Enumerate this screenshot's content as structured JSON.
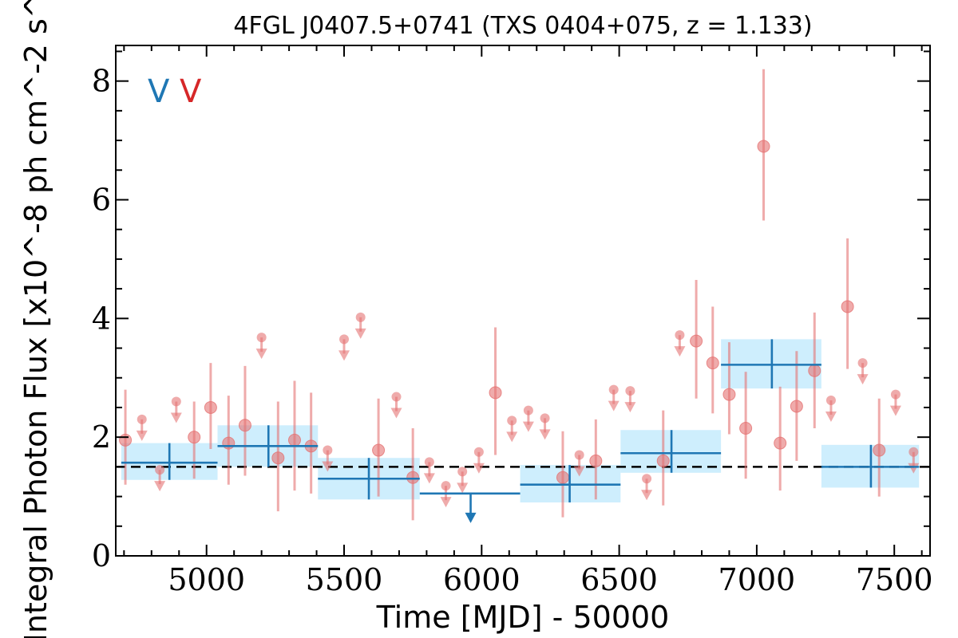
{
  "chart_data": {
    "type": "scatter",
    "title": "4FGL J0407.5+0741 (TXS 0404+075, z = 1.133)",
    "xlabel": "Time [MJD] - 50000",
    "ylabel": "Integral Photon Flux [x10^-8 ph cm^-2 s^-1]",
    "xlim": [
      4670,
      7630
    ],
    "ylim": [
      0,
      8.6
    ],
    "xticks": [
      "5000",
      "5500",
      "6000",
      "6500",
      "7000",
      "7500"
    ],
    "yticks": [
      "0",
      "2",
      "4",
      "6",
      "8"
    ],
    "grid": false,
    "annotations": [
      {
        "text": "V",
        "color": "#1f77b4"
      },
      {
        "text": "V",
        "color": "#d62728"
      }
    ],
    "reference_level": 1.5,
    "colors": {
      "fine_series": "#e57373",
      "coarse_series": "#1f77b4",
      "coarse_band": "#b3e5fc",
      "reference_line": "#000000"
    },
    "series": [
      {
        "kind": "fine_bins",
        "points": [
          {
            "x": 4705,
            "y": 1.95,
            "lo": 1.2,
            "hi": 2.8
          },
          {
            "x": 4765,
            "y": 2.3,
            "ul": true
          },
          {
            "x": 4830,
            "y": 1.45,
            "ul": true
          },
          {
            "x": 4890,
            "y": 2.6,
            "ul": true
          },
          {
            "x": 4955,
            "y": 2.0,
            "lo": 1.3,
            "hi": 2.6
          },
          {
            "x": 5015,
            "y": 2.5,
            "lo": 1.8,
            "hi": 3.25
          },
          {
            "x": 5080,
            "y": 1.9,
            "lo": 1.2,
            "hi": 2.7
          },
          {
            "x": 5140,
            "y": 2.2,
            "lo": 1.35,
            "hi": 3.2
          },
          {
            "x": 5260,
            "y": 1.65,
            "lo": 0.75,
            "hi": 2.6
          },
          {
            "x": 5200,
            "y": 3.68,
            "ul": true
          },
          {
            "x": 5320,
            "y": 1.95,
            "lo": 1.1,
            "hi": 2.95
          },
          {
            "x": 5380,
            "y": 1.85,
            "lo": 1.05,
            "hi": 2.75
          },
          {
            "x": 5440,
            "y": 1.78,
            "ul": true
          },
          {
            "x": 5500,
            "y": 3.65,
            "ul": true
          },
          {
            "x": 5560,
            "y": 4.02,
            "ul": true
          },
          {
            "x": 5625,
            "y": 1.78,
            "lo": 1.0,
            "hi": 2.65
          },
          {
            "x": 5690,
            "y": 2.68,
            "ul": true
          },
          {
            "x": 5750,
            "y": 1.32,
            "lo": 0.6,
            "hi": 2.15
          },
          {
            "x": 5810,
            "y": 1.58,
            "ul": true
          },
          {
            "x": 5870,
            "y": 1.18,
            "ul": true
          },
          {
            "x": 5930,
            "y": 1.42,
            "ul": true
          },
          {
            "x": 5990,
            "y": 1.75,
            "ul": true
          },
          {
            "x": 6050,
            "y": 2.75,
            "lo": 1.7,
            "hi": 3.85
          },
          {
            "x": 6110,
            "y": 2.28,
            "ul": true
          },
          {
            "x": 6170,
            "y": 2.45,
            "ul": true
          },
          {
            "x": 6230,
            "y": 2.32,
            "ul": true
          },
          {
            "x": 6295,
            "y": 1.32,
            "lo": 0.65,
            "hi": 2.1
          },
          {
            "x": 6355,
            "y": 1.7,
            "ul": true
          },
          {
            "x": 6415,
            "y": 1.6,
            "lo": 0.95,
            "hi": 2.3
          },
          {
            "x": 6480,
            "y": 2.8,
            "ul": true
          },
          {
            "x": 6540,
            "y": 2.78,
            "ul": true
          },
          {
            "x": 6600,
            "y": 1.3,
            "ul": true
          },
          {
            "x": 6660,
            "y": 1.6,
            "lo": 0.85,
            "hi": 2.45
          },
          {
            "x": 6720,
            "y": 3.72,
            "ul": true
          },
          {
            "x": 6780,
            "y": 3.62,
            "lo": 2.65,
            "hi": 4.65
          },
          {
            "x": 6840,
            "y": 3.25,
            "lo": 2.4,
            "hi": 4.2
          },
          {
            "x": 6900,
            "y": 2.72,
            "lo": 2.05,
            "hi": 3.6
          },
          {
            "x": 6960,
            "y": 2.15,
            "lo": 1.3,
            "hi": 3.1
          },
          {
            "x": 7025,
            "y": 6.9,
            "lo": 5.65,
            "hi": 8.2
          },
          {
            "x": 7085,
            "y": 1.9,
            "lo": 1.1,
            "hi": 2.85
          },
          {
            "x": 7145,
            "y": 2.52,
            "lo": 1.6,
            "hi": 3.45
          },
          {
            "x": 7210,
            "y": 3.12,
            "lo": 2.15,
            "hi": 4.1
          },
          {
            "x": 7270,
            "y": 2.62,
            "ul": true
          },
          {
            "x": 7330,
            "y": 4.2,
            "lo": 3.15,
            "hi": 5.35
          },
          {
            "x": 7385,
            "y": 3.25,
            "ul": true
          },
          {
            "x": 7445,
            "y": 1.78,
            "lo": 1.0,
            "hi": 2.65
          },
          {
            "x": 7505,
            "y": 2.72,
            "ul": true
          },
          {
            "x": 7570,
            "y": 1.75,
            "ul": true
          }
        ]
      },
      {
        "kind": "coarse_bins",
        "points": [
          {
            "x0": 4690,
            "x1": 5040,
            "xc": 4865,
            "y": 1.57,
            "lo": 1.28,
            "hi": 1.9
          },
          {
            "x0": 5040,
            "x1": 5405,
            "xc": 5225,
            "y": 1.85,
            "lo": 1.5,
            "hi": 2.2
          },
          {
            "x0": 5405,
            "x1": 5775,
            "xc": 5590,
            "y": 1.3,
            "lo": 0.95,
            "hi": 1.65
          },
          {
            "x0": 5775,
            "x1": 6140,
            "xc": 5960,
            "y": 1.05,
            "ul": true
          },
          {
            "x0": 6140,
            "x1": 6505,
            "xc": 6320,
            "y": 1.2,
            "lo": 0.9,
            "hi": 1.53
          },
          {
            "x0": 6505,
            "x1": 6870,
            "xc": 6690,
            "y": 1.73,
            "lo": 1.4,
            "hi": 2.12
          },
          {
            "x0": 6870,
            "x1": 7235,
            "xc": 7055,
            "y": 3.22,
            "lo": 2.82,
            "hi": 3.65
          },
          {
            "x0": 7235,
            "x1": 7590,
            "xc": 7415,
            "y": 1.5,
            "lo": 1.15,
            "hi": 1.87
          }
        ]
      }
    ]
  }
}
